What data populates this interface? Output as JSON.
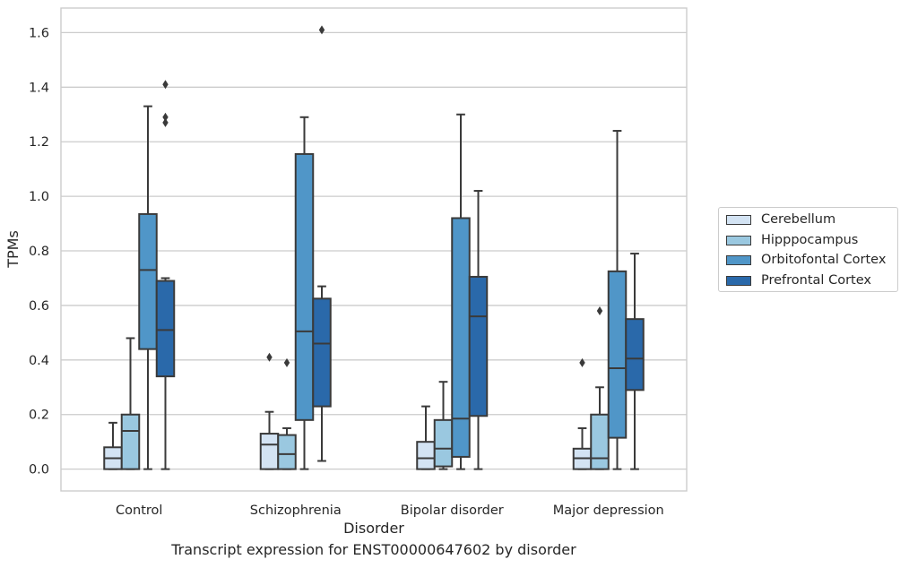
{
  "chart_data": {
    "type": "box",
    "title": "",
    "caption": "Transcript expression for ENST00000647602 by disorder",
    "xlabel": "Disorder",
    "ylabel": "TPMs",
    "ylim": [
      -0.08,
      1.69
    ],
    "yticks": [
      "0.0",
      "0.2",
      "0.4",
      "0.6",
      "0.8",
      "1.0",
      "1.2",
      "1.4",
      "1.6"
    ],
    "grid": true,
    "legend_position": "right",
    "categories": [
      "Control",
      "Schizophrenia",
      "Bipolar disorder",
      "Major depression"
    ],
    "series": [
      {
        "name": "Cerebellum",
        "color": "#d3e3f3",
        "boxes": [
          {
            "whislo": 0.0,
            "q1": 0.0,
            "med": 0.04,
            "q3": 0.08,
            "whishi": 0.17,
            "fliers": []
          },
          {
            "whislo": 0.0,
            "q1": 0.0,
            "med": 0.09,
            "q3": 0.13,
            "whishi": 0.21,
            "fliers": [
              0.41
            ]
          },
          {
            "whislo": 0.0,
            "q1": 0.0,
            "med": 0.04,
            "q3": 0.1,
            "whishi": 0.23,
            "fliers": []
          },
          {
            "whislo": 0.0,
            "q1": 0.0,
            "med": 0.04,
            "q3": 0.075,
            "whishi": 0.15,
            "fliers": [
              0.39
            ]
          }
        ]
      },
      {
        "name": "Hipppocampus",
        "color": "#9ac8e0",
        "boxes": [
          {
            "whislo": 0.0,
            "q1": 0.0,
            "med": 0.14,
            "q3": 0.2,
            "whishi": 0.48,
            "fliers": []
          },
          {
            "whislo": 0.0,
            "q1": 0.0,
            "med": 0.055,
            "q3": 0.125,
            "whishi": 0.15,
            "fliers": [
              0.39
            ]
          },
          {
            "whislo": 0.0,
            "q1": 0.01,
            "med": 0.075,
            "q3": 0.18,
            "whishi": 0.32,
            "fliers": []
          },
          {
            "whislo": 0.0,
            "q1": 0.0,
            "med": 0.04,
            "q3": 0.2,
            "whishi": 0.3,
            "fliers": [
              0.58
            ]
          }
        ]
      },
      {
        "name": "Orbitofontal Cortex",
        "color": "#5096c8",
        "boxes": [
          {
            "whislo": 0.0,
            "q1": 0.44,
            "med": 0.73,
            "q3": 0.935,
            "whishi": 1.33,
            "fliers": []
          },
          {
            "whislo": 0.0,
            "q1": 0.18,
            "med": 0.505,
            "q3": 1.155,
            "whishi": 1.29,
            "fliers": []
          },
          {
            "whislo": 0.0,
            "q1": 0.045,
            "med": 0.185,
            "q3": 0.92,
            "whishi": 1.3,
            "fliers": []
          },
          {
            "whislo": 0.0,
            "q1": 0.115,
            "med": 0.37,
            "q3": 0.725,
            "whishi": 1.24,
            "fliers": []
          }
        ]
      },
      {
        "name": "Prefrontal Cortex",
        "color": "#2a69aa",
        "boxes": [
          {
            "whislo": 0.0,
            "q1": 0.34,
            "med": 0.51,
            "q3": 0.69,
            "whishi": 0.7,
            "fliers": [
              1.27,
              1.29,
              1.41
            ]
          },
          {
            "whislo": 0.03,
            "q1": 0.23,
            "med": 0.46,
            "q3": 0.625,
            "whishi": 0.67,
            "fliers": [
              1.61
            ]
          },
          {
            "whislo": 0.0,
            "q1": 0.195,
            "med": 0.56,
            "q3": 0.705,
            "whishi": 1.02,
            "fliers": []
          },
          {
            "whislo": 0.0,
            "q1": 0.29,
            "med": 0.405,
            "q3": 0.55,
            "whishi": 0.79,
            "fliers": []
          }
        ]
      }
    ]
  }
}
